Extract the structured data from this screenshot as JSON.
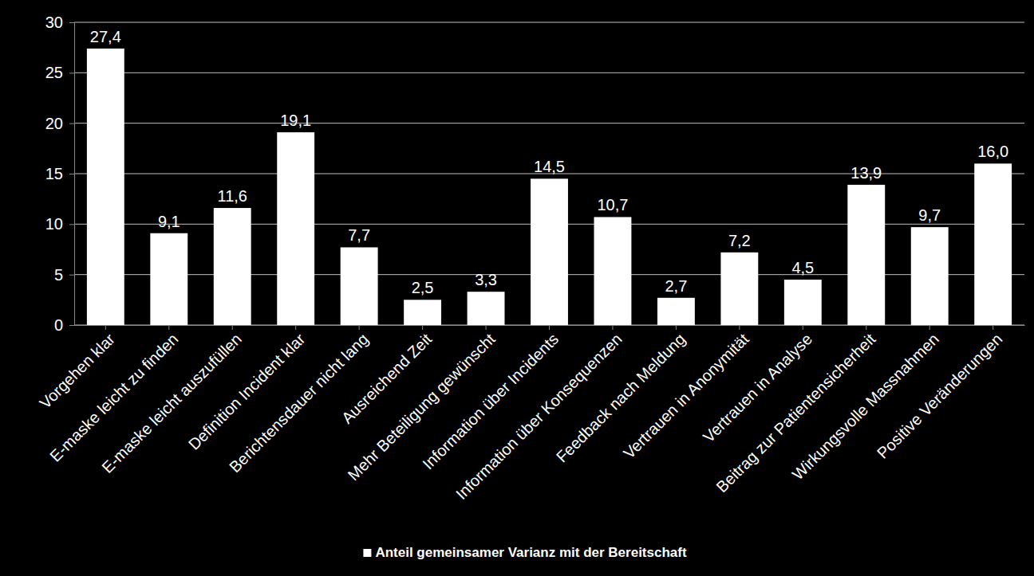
{
  "chart_data": {
    "type": "bar",
    "categories": [
      "Vorgehen klar",
      "E-maske leicht zu finden",
      "E-maske leicht auszufüllen",
      "Definition Incident klar",
      "Berichtensdauer nicht lang",
      "Ausreichend Zeit",
      "Mehr Beteiligung gewünscht",
      "Information über Incidents",
      "Information über Konsequenzen",
      "Feedback nach Meldung",
      "Vertrauen in Anonymität",
      "Vertrauen in Analyse",
      "Beitrag zur Patientensicherheit",
      "Wirkungsvolle Massnahmen",
      "Positive Veränderungen"
    ],
    "series": [
      {
        "name": "Anteil gemeinsamer Varianz mit der Bereitschaft",
        "color": "#ffffff",
        "values": [
          27.4,
          9.1,
          11.6,
          19.1,
          7.7,
          2.5,
          3.3,
          14.5,
          10.7,
          2.7,
          7.2,
          4.5,
          13.9,
          9.7,
          16.0
        ],
        "value_labels": [
          "27,4",
          "9,1",
          "11,6",
          "19,1",
          "7,7",
          "2,5",
          "3,3",
          "14,5",
          "10,7",
          "2,7",
          "7,2",
          "4,5",
          "13,9",
          "9,7",
          "16,0"
        ]
      }
    ],
    "ylim": [
      0,
      30
    ],
    "yticks": [
      0,
      5,
      10,
      15,
      20,
      25,
      30
    ],
    "grid": true,
    "data_labels": true,
    "legend": "bottom"
  }
}
